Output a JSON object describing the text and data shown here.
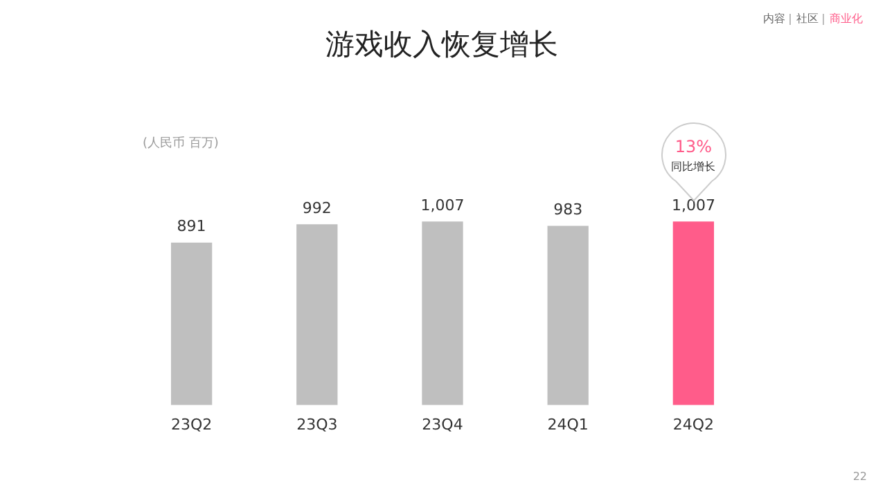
{
  "chart_data": {
    "type": "bar",
    "title": "游戏收入恢复增长",
    "categories": [
      "23Q2",
      "23Q3",
      "23Q4",
      "24Q1",
      "24Q2"
    ],
    "values": [
      891,
      992,
      1007,
      983,
      1007
    ],
    "value_labels": [
      "891",
      "992",
      "1,007",
      "983",
      "1,007"
    ],
    "colors": [
      "#bfbfbf",
      "#bfbfbf",
      "#bfbfbf",
      "#bfbfbf",
      "#ff5c8a"
    ],
    "annotations": [
      "(人民币 百万)",
      "内容",
      "社区",
      "商业化",
      "13%",
      "同比增长",
      "22"
    ],
    "grid": false,
    "legend": false
  }
}
